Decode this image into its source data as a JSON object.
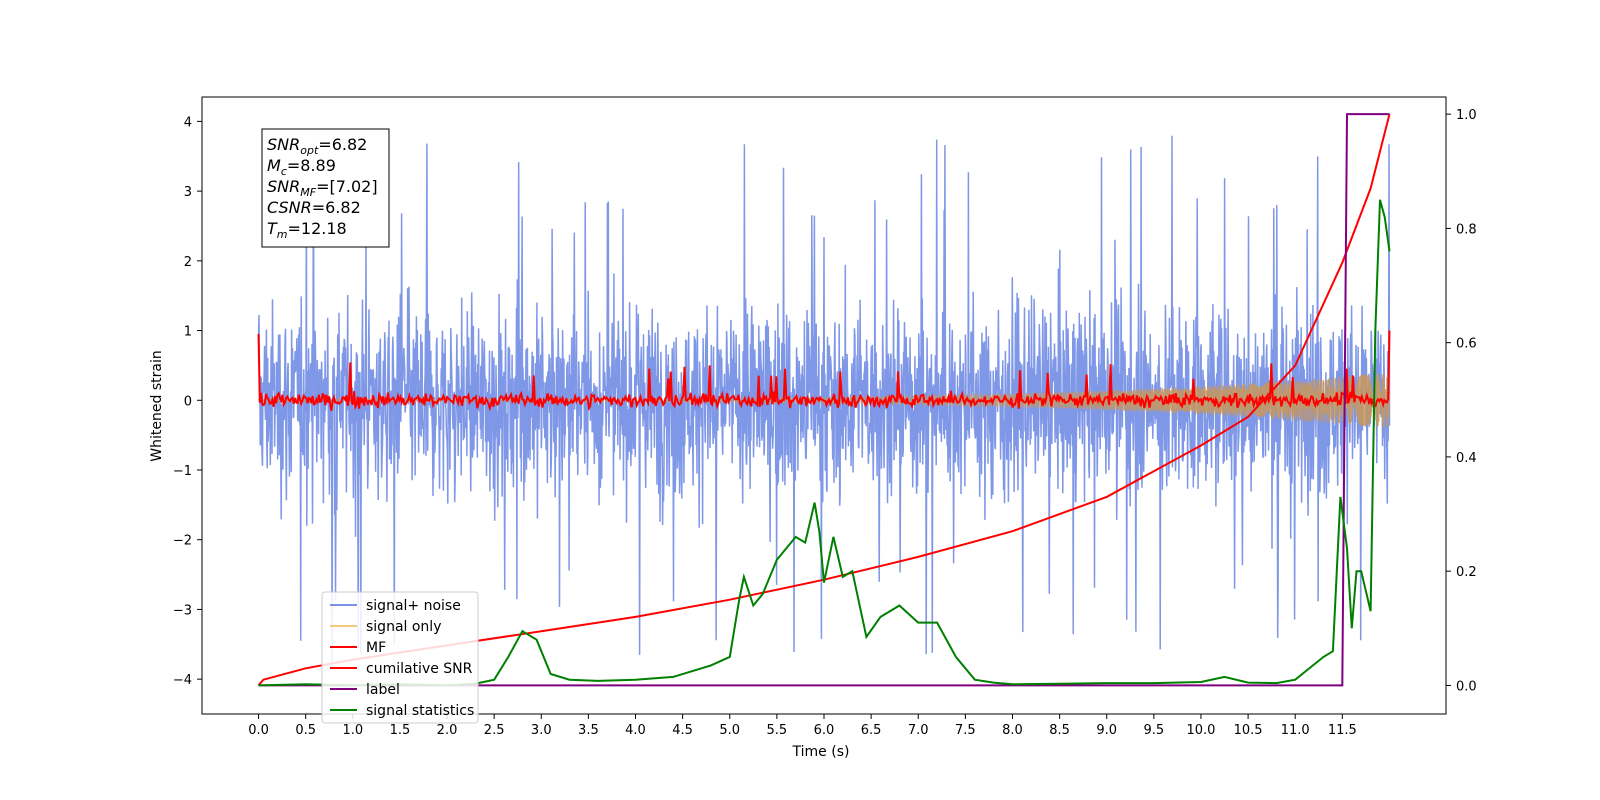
{
  "chart_data": {
    "type": "line",
    "xlabel": "Time (s)",
    "ylabel": "Whitened strain",
    "xlim": [
      -0.6,
      12.6
    ],
    "ylim": [
      -4.5,
      4.35
    ],
    "ylim_right": [
      -0.05,
      1.03
    ],
    "grid": false,
    "legend_placement": "lower-left",
    "x_ticks": [
      "0.0",
      "0.5",
      "1.0",
      "1.5",
      "2.0",
      "2.5",
      "3.0",
      "3.5",
      "4.0",
      "4.5",
      "5.0",
      "5.5",
      "6.0",
      "6.5",
      "7.0",
      "7.5",
      "8.0",
      "8.5",
      "9.0",
      "9.5",
      "10.0",
      "10.5",
      "11.0",
      "11.5"
    ],
    "y_ticks_left": [
      "4",
      "3",
      "2",
      "1",
      "0",
      "−1",
      "−2",
      "−3",
      "−4"
    ],
    "y_ticks_right": [
      "1.0",
      "0.8",
      "0.6",
      "0.4",
      "0.2",
      "0.0"
    ],
    "annotation": [
      {
        "base": "SNR",
        "sub": "opt",
        "value": "=6.82"
      },
      {
        "base": "M",
        "sub": "c",
        "value": "=8.89"
      },
      {
        "base": "SNR",
        "sub": "MF",
        "value": "=[7.02]"
      },
      {
        "base": "CSNR",
        "sub": "",
        "value": "=6.82"
      },
      {
        "base": "T",
        "sub": "m",
        "value": "=12.18"
      }
    ],
    "series": [
      {
        "name": "signal+ noise",
        "axis": "left",
        "color": "#7891e6",
        "description": "whitened noisy strain, dense oscillation roughly between -2.5 and 2.8, peaks near 4",
        "x_range": [
          0,
          12.0
        ],
        "amplitude": [
          -2.5,
          2.8
        ]
      },
      {
        "name": "signal only",
        "axis": "left",
        "color": "#f5c97a",
        "x_range": [
          0,
          12.0
        ],
        "envelope_start": 0.02,
        "envelope_end": 0.4
      },
      {
        "name": "MF",
        "axis": "left",
        "color": "#ff0000",
        "x_range": [
          0,
          12.0
        ],
        "amplitude": [
          -0.2,
          0.5
        ]
      },
      {
        "name": "cumilative SNR",
        "axis": "right",
        "color": "#ff0000",
        "x": [
          0.0,
          0.05,
          0.5,
          1.0,
          2.0,
          3.0,
          4.0,
          5.0,
          6.0,
          7.0,
          8.0,
          9.0,
          10.0,
          10.5,
          11.0,
          11.5,
          11.8,
          12.0
        ],
        "values": [
          0.0,
          0.01,
          0.03,
          0.045,
          0.07,
          0.095,
          0.12,
          0.15,
          0.185,
          0.225,
          0.27,
          0.33,
          0.42,
          0.47,
          0.56,
          0.74,
          0.87,
          1.0
        ]
      },
      {
        "name": "label",
        "axis": "right",
        "color": "#800080",
        "x": [
          0.0,
          11.5,
          11.55,
          11.6,
          12.0
        ],
        "values": [
          0.0,
          0.0,
          1.0,
          1.0,
          1.0
        ]
      },
      {
        "name": "signal statistics",
        "axis": "right",
        "color": "#008000",
        "x": [
          0.0,
          0.5,
          1.0,
          1.5,
          2.0,
          2.3,
          2.5,
          2.65,
          2.8,
          2.95,
          3.1,
          3.3,
          3.6,
          4.0,
          4.4,
          4.8,
          5.0,
          5.1,
          5.15,
          5.25,
          5.35,
          5.5,
          5.7,
          5.8,
          5.9,
          5.95,
          6.0,
          6.1,
          6.2,
          6.3,
          6.45,
          6.6,
          6.8,
          7.0,
          7.2,
          7.4,
          7.6,
          7.8,
          8.0,
          8.5,
          9.0,
          9.5,
          10.0,
          10.25,
          10.5,
          10.8,
          11.0,
          11.3,
          11.4,
          11.48,
          11.55,
          11.6,
          11.65,
          11.7,
          11.8,
          11.85,
          11.9,
          11.95,
          12.0
        ],
        "values": [
          0.0,
          0.002,
          0.0,
          0.002,
          0.0,
          0.003,
          0.01,
          0.05,
          0.095,
          0.08,
          0.02,
          0.01,
          0.008,
          0.01,
          0.015,
          0.035,
          0.05,
          0.15,
          0.19,
          0.14,
          0.16,
          0.22,
          0.26,
          0.25,
          0.32,
          0.27,
          0.18,
          0.26,
          0.19,
          0.2,
          0.085,
          0.12,
          0.14,
          0.11,
          0.11,
          0.05,
          0.01,
          0.005,
          0.002,
          0.003,
          0.004,
          0.004,
          0.006,
          0.015,
          0.005,
          0.004,
          0.01,
          0.05,
          0.06,
          0.33,
          0.24,
          0.1,
          0.2,
          0.2,
          0.13,
          0.62,
          0.85,
          0.82,
          0.76
        ]
      }
    ]
  }
}
